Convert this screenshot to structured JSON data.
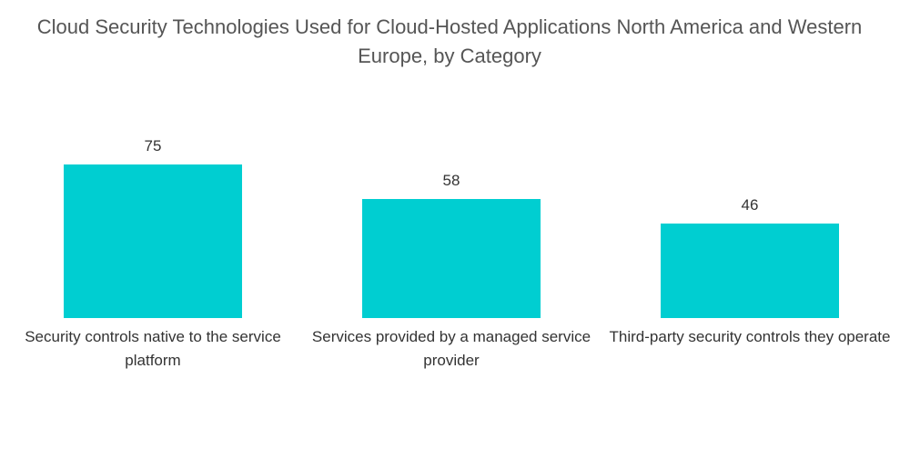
{
  "chart_data": {
    "type": "bar",
    "title": "Cloud Security Technologies Used for Cloud-Hosted Applications North America and Western Europe, by Category",
    "categories": [
      "Security controls native to the service platform",
      "Services provided by a managed service provider",
      "Third-party security controls they operate"
    ],
    "values": [
      75,
      58,
      46
    ],
    "color": "#00ced1"
  }
}
